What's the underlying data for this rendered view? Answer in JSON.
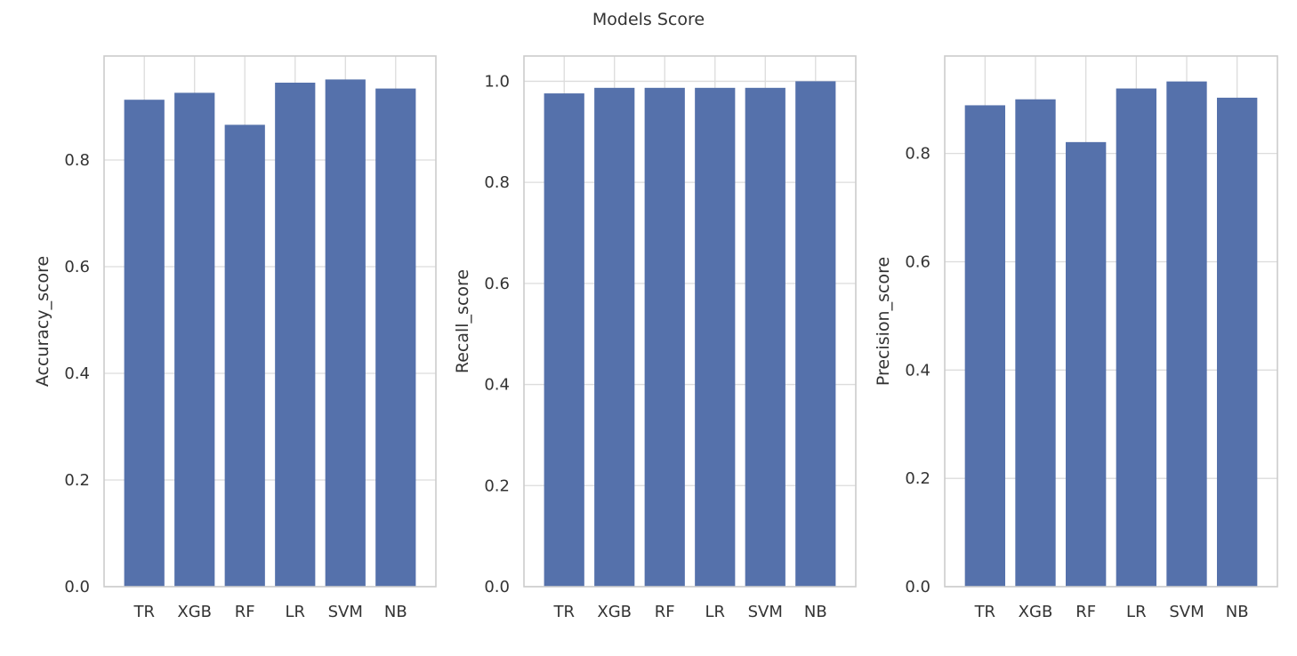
{
  "colors": {
    "bar": "#5571ab",
    "grid": "#dcdcdc",
    "frame": "#cccccc",
    "text": "#333333",
    "background": "#ffffff"
  },
  "chart_data": {
    "title": "Models Score",
    "type": "bar",
    "grid": true,
    "subplots": [
      {
        "type": "bar",
        "categories": [
          "TR",
          "XGB",
          "RF",
          "LR",
          "SVM",
          "NB"
        ],
        "values": [
          0.913,
          0.926,
          0.866,
          0.945,
          0.951,
          0.934
        ],
        "xlabel": "",
        "ylabel": "Accuracy_score",
        "ylim": [
          0,
          0.995
        ],
        "yticks": [
          0.0,
          0.2,
          0.4,
          0.6,
          0.8
        ],
        "ytick_labels": [
          "0.0",
          "0.2",
          "0.4",
          "0.6",
          "0.8"
        ]
      },
      {
        "type": "bar",
        "categories": [
          "TR",
          "XGB",
          "RF",
          "LR",
          "SVM",
          "NB"
        ],
        "values": [
          0.976,
          0.987,
          0.987,
          0.987,
          0.987,
          1.0
        ],
        "xlabel": "",
        "ylabel": "Recall_score",
        "ylim": [
          0,
          1.05
        ],
        "yticks": [
          0.0,
          0.2,
          0.4,
          0.6,
          0.8,
          1.0
        ],
        "ytick_labels": [
          "0.0",
          "0.2",
          "0.4",
          "0.6",
          "0.8",
          "1.0"
        ]
      },
      {
        "type": "bar",
        "categories": [
          "TR",
          "XGB",
          "RF",
          "LR",
          "SVM",
          "NB"
        ],
        "values": [
          0.889,
          0.9,
          0.821,
          0.92,
          0.933,
          0.903
        ],
        "xlabel": "",
        "ylabel": "Precision_score",
        "ylim": [
          0,
          0.98
        ],
        "yticks": [
          0.0,
          0.2,
          0.4,
          0.6,
          0.8
        ],
        "ytick_labels": [
          "0.0",
          "0.2",
          "0.4",
          "0.6",
          "0.8"
        ]
      }
    ]
  }
}
